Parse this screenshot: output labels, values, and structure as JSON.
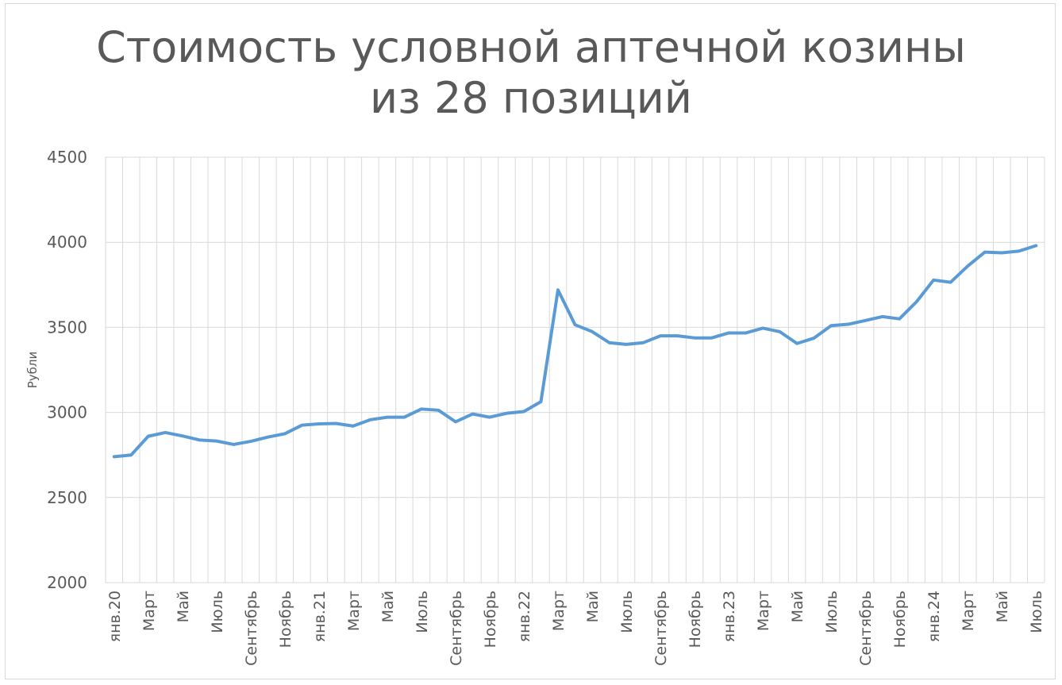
{
  "chart_data": {
    "type": "line",
    "title_lines": [
      "Стоимость условной аптечной козины",
      "из 28 позиций"
    ],
    "ylabel": "Рубли",
    "xlabel": "",
    "ylim": [
      2000,
      4500
    ],
    "yticks": [
      2000,
      2500,
      3000,
      3500,
      4000,
      4500
    ],
    "grid": true,
    "legend": "none",
    "line_color": "#5b9bd5",
    "x_tick_labels": [
      {
        "index": 0,
        "label": "янв.20"
      },
      {
        "index": 2,
        "label": "Март"
      },
      {
        "index": 4,
        "label": "Май"
      },
      {
        "index": 6,
        "label": "Июль"
      },
      {
        "index": 8,
        "label": "Сентябрь"
      },
      {
        "index": 10,
        "label": "Ноябрь"
      },
      {
        "index": 12,
        "label": "янв.21"
      },
      {
        "index": 14,
        "label": "Март"
      },
      {
        "index": 16,
        "label": "Май"
      },
      {
        "index": 18,
        "label": "Июль"
      },
      {
        "index": 20,
        "label": "Сентябрь"
      },
      {
        "index": 22,
        "label": "Ноябрь"
      },
      {
        "index": 24,
        "label": "янв.22"
      },
      {
        "index": 26,
        "label": "Март"
      },
      {
        "index": 28,
        "label": "Май"
      },
      {
        "index": 30,
        "label": "Июль"
      },
      {
        "index": 32,
        "label": "Сентябрь"
      },
      {
        "index": 34,
        "label": "Ноябрь"
      },
      {
        "index": 36,
        "label": "янв.23"
      },
      {
        "index": 38,
        "label": "Март"
      },
      {
        "index": 40,
        "label": "Май"
      },
      {
        "index": 42,
        "label": "Июль"
      },
      {
        "index": 44,
        "label": "Сентябрь"
      },
      {
        "index": 46,
        "label": "Ноябрь"
      },
      {
        "index": 48,
        "label": "янв.24"
      },
      {
        "index": 50,
        "label": "Март"
      },
      {
        "index": 52,
        "label": "Май"
      },
      {
        "index": 54,
        "label": "Июль"
      }
    ],
    "series": [
      {
        "values": [
          2740,
          2750,
          2860,
          2882,
          2862,
          2838,
          2832,
          2812,
          2830,
          2855,
          2875,
          2925,
          2933,
          2935,
          2920,
          2957,
          2972,
          2972,
          3020,
          3013,
          2945,
          2991,
          2972,
          2995,
          3005,
          3063,
          3720,
          3515,
          3475,
          3410,
          3400,
          3410,
          3450,
          3450,
          3438,
          3438,
          3467,
          3467,
          3495,
          3474,
          3405,
          3437,
          3510,
          3518,
          3540,
          3563,
          3550,
          3650,
          3778,
          3765,
          3860,
          3942,
          3938,
          3948,
          3980
        ]
      }
    ]
  }
}
